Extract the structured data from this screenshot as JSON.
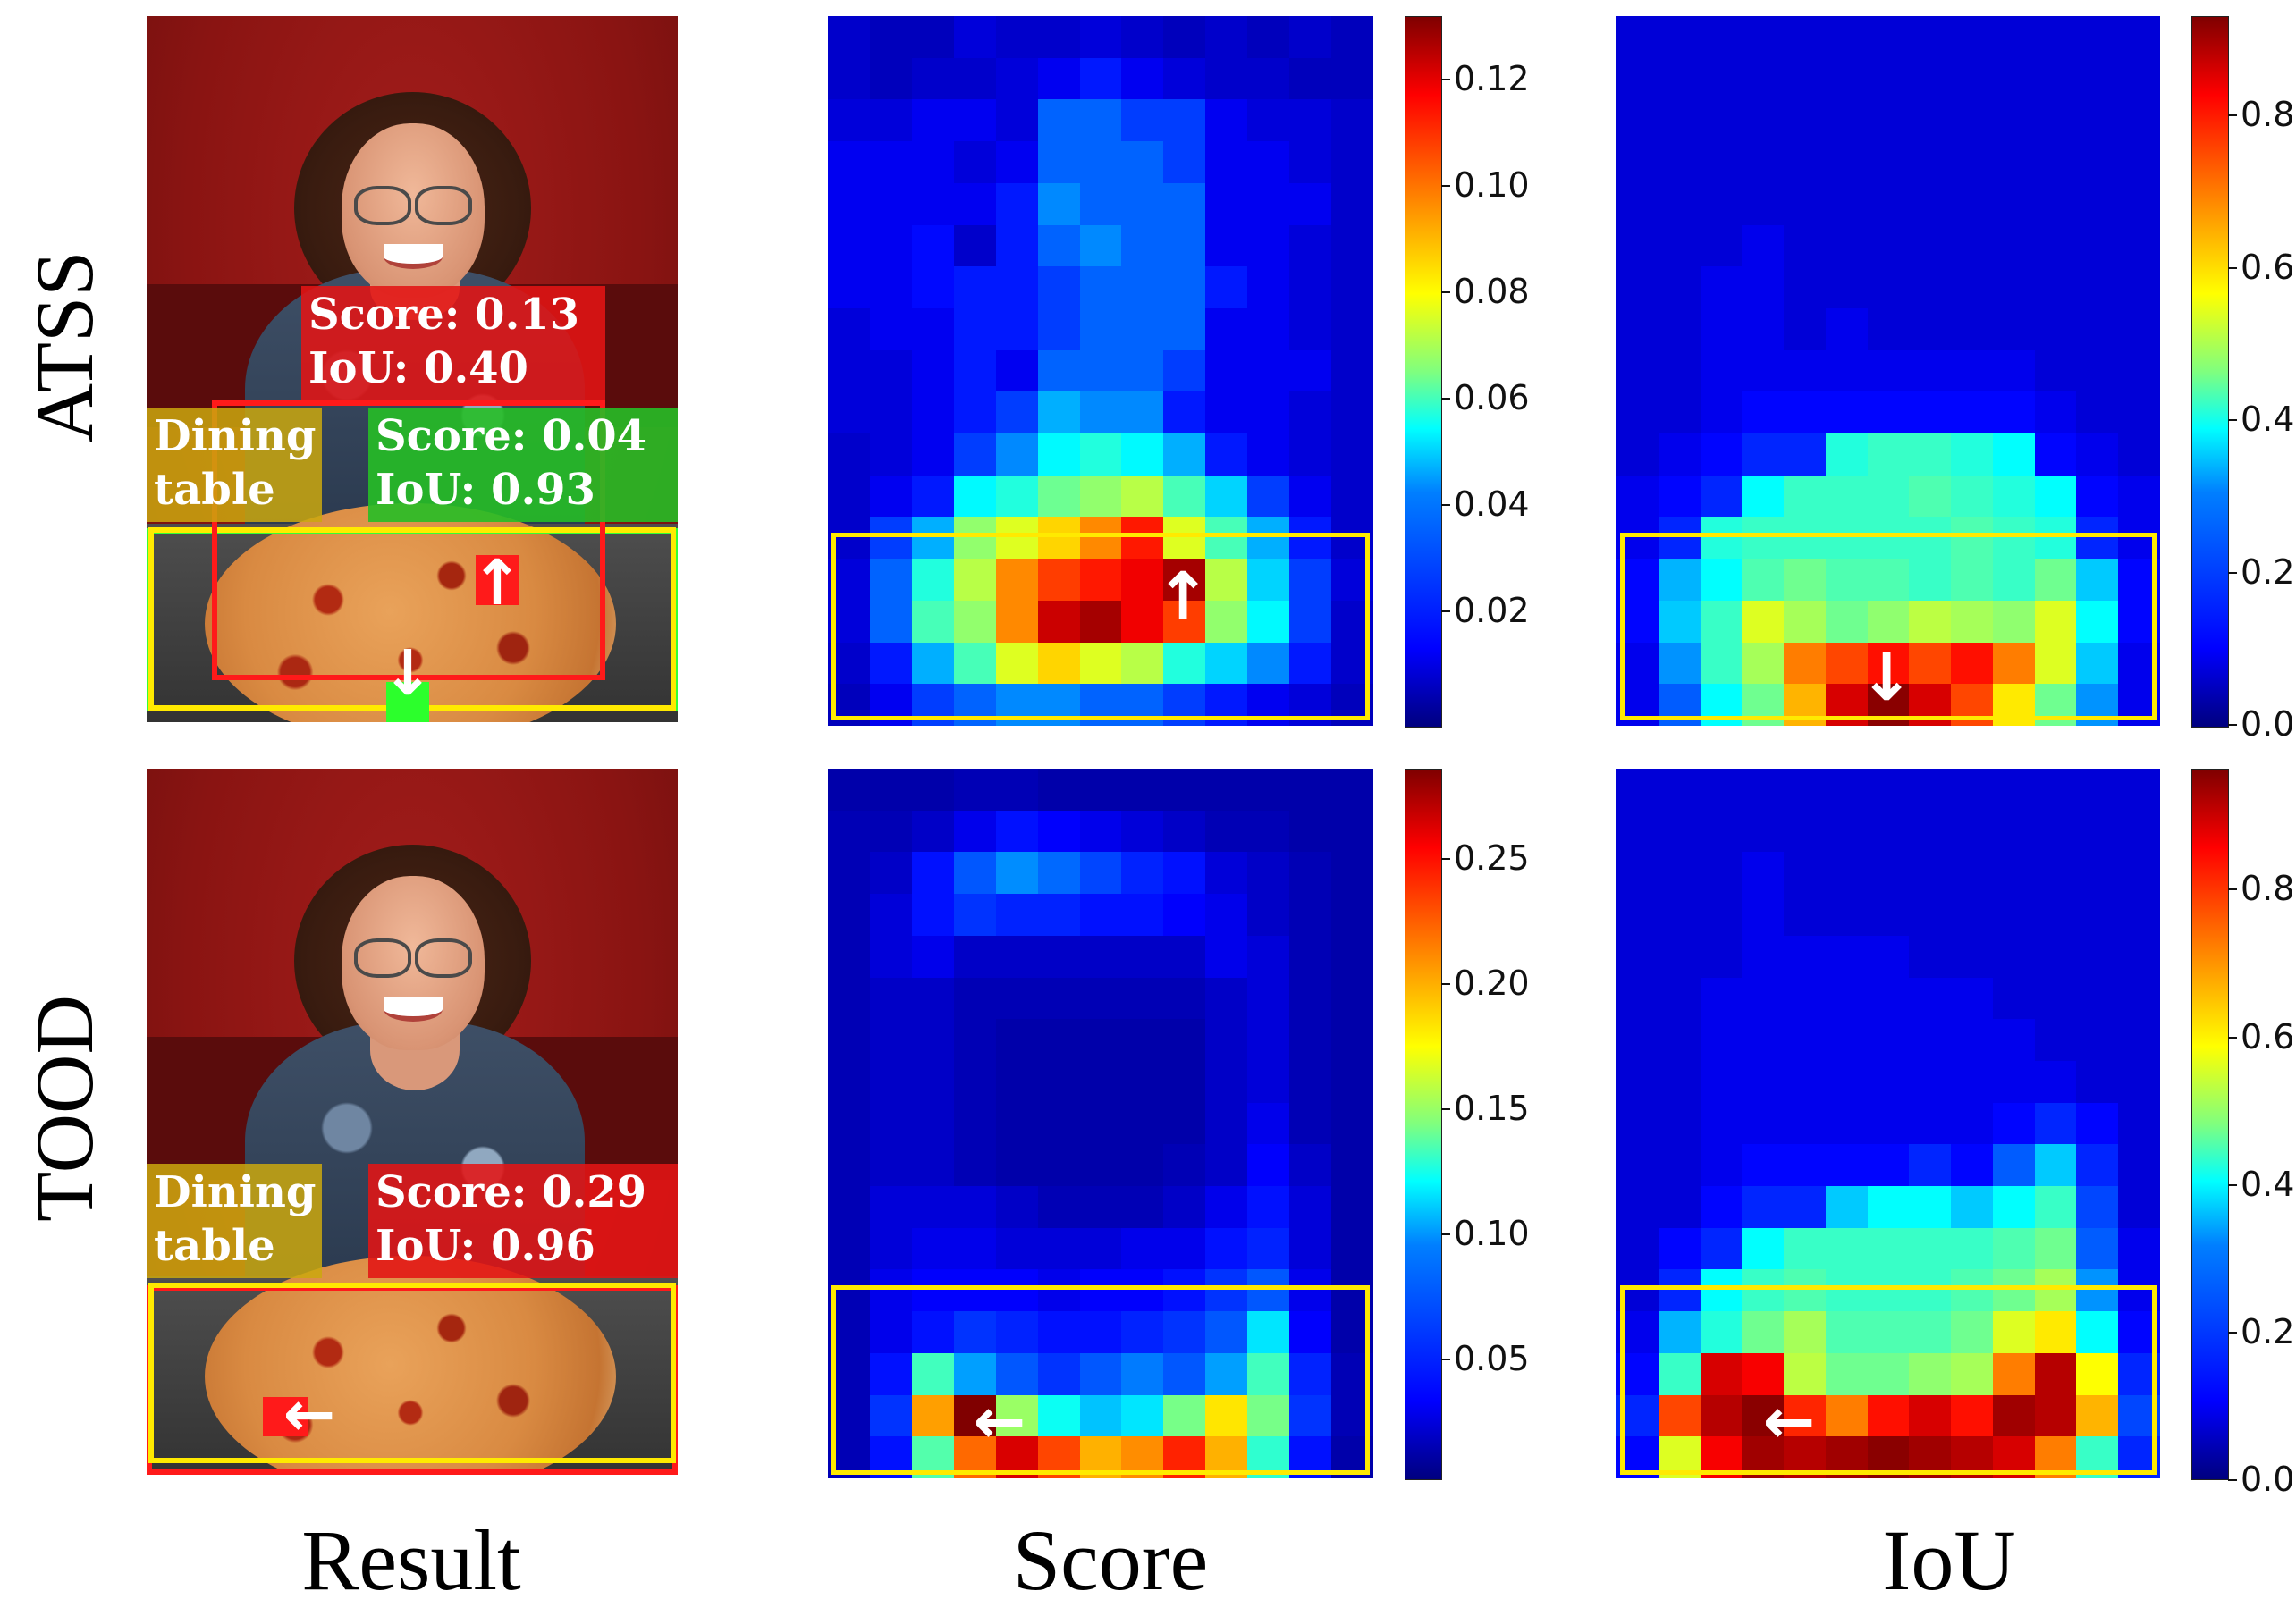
{
  "rows": [
    "ATSS",
    "TOOD"
  ],
  "columns": [
    "Result",
    "Score",
    "IoU"
  ],
  "atss": {
    "result": {
      "class_label": "Dining\ntable",
      "red_box": {
        "score": "Score: 0.13",
        "iou": "IoU: 0.40"
      },
      "green_box": {
        "score": "Score: 0.04",
        "iou": "IoU: 0.93"
      }
    },
    "score_colorbar": [
      "0.12",
      "0.10",
      "0.08",
      "0.06",
      "0.04",
      "0.02"
    ],
    "iou_colorbar": [
      "0.8",
      "0.6",
      "0.4",
      "0.2",
      "0.0"
    ]
  },
  "tood": {
    "result": {
      "class_label": "Dining\ntable",
      "red_box": {
        "score": "Score: 0.29",
        "iou": "IoU: 0.96"
      }
    },
    "score_colorbar": [
      "0.25",
      "0.20",
      "0.15",
      "0.10",
      "0.05"
    ],
    "iou_colorbar": [
      "0.8",
      "0.6",
      "0.4",
      "0.2",
      "0.0"
    ]
  },
  "chart_data": [
    {
      "type": "heatmap",
      "panel": "ATSS Score",
      "colormap": "jet",
      "range": [
        0,
        0.135
      ],
      "values": [
        [
          0.01,
          0.008,
          0.008,
          0.012,
          0.01,
          0.01,
          0.012,
          0.01,
          0.008,
          0.01,
          0.008,
          0.01,
          0.008
        ],
        [
          0.01,
          0.008,
          0.01,
          0.01,
          0.012,
          0.015,
          0.02,
          0.015,
          0.012,
          0.01,
          0.01,
          0.008,
          0.008
        ],
        [
          0.012,
          0.012,
          0.015,
          0.015,
          0.012,
          0.03,
          0.03,
          0.025,
          0.025,
          0.015,
          0.012,
          0.012,
          0.01
        ],
        [
          0.015,
          0.015,
          0.015,
          0.012,
          0.015,
          0.03,
          0.03,
          0.03,
          0.025,
          0.015,
          0.015,
          0.012,
          0.01
        ],
        [
          0.015,
          0.015,
          0.015,
          0.015,
          0.02,
          0.035,
          0.03,
          0.03,
          0.03,
          0.015,
          0.015,
          0.015,
          0.01
        ],
        [
          0.015,
          0.015,
          0.018,
          0.01,
          0.02,
          0.03,
          0.035,
          0.03,
          0.03,
          0.015,
          0.015,
          0.012,
          0.01
        ],
        [
          0.015,
          0.015,
          0.018,
          0.02,
          0.02,
          0.025,
          0.03,
          0.03,
          0.03,
          0.02,
          0.015,
          0.012,
          0.01
        ],
        [
          0.012,
          0.015,
          0.015,
          0.02,
          0.02,
          0.025,
          0.03,
          0.03,
          0.03,
          0.015,
          0.015,
          0.012,
          0.01
        ],
        [
          0.012,
          0.012,
          0.015,
          0.02,
          0.015,
          0.03,
          0.03,
          0.03,
          0.025,
          0.015,
          0.015,
          0.015,
          0.01
        ],
        [
          0.012,
          0.012,
          0.015,
          0.02,
          0.025,
          0.04,
          0.035,
          0.035,
          0.02,
          0.015,
          0.015,
          0.012,
          0.01
        ],
        [
          0.01,
          0.012,
          0.015,
          0.025,
          0.035,
          0.05,
          0.055,
          0.05,
          0.04,
          0.02,
          0.015,
          0.012,
          0.01
        ],
        [
          0.01,
          0.015,
          0.02,
          0.05,
          0.055,
          0.065,
          0.07,
          0.075,
          0.06,
          0.045,
          0.025,
          0.015,
          0.01
        ],
        [
          0.01,
          0.025,
          0.04,
          0.07,
          0.08,
          0.09,
          0.1,
          0.115,
          0.08,
          0.06,
          0.04,
          0.02,
          0.01
        ],
        [
          0.012,
          0.03,
          0.055,
          0.075,
          0.1,
          0.11,
          0.115,
          0.12,
          0.13,
          0.075,
          0.045,
          0.025,
          0.012
        ],
        [
          0.012,
          0.03,
          0.06,
          0.07,
          0.1,
          0.125,
          0.13,
          0.12,
          0.11,
          0.07,
          0.05,
          0.025,
          0.01
        ],
        [
          0.01,
          0.02,
          0.04,
          0.06,
          0.08,
          0.09,
          0.08,
          0.075,
          0.055,
          0.045,
          0.035,
          0.02,
          0.01
        ],
        [
          0.008,
          0.015,
          0.025,
          0.03,
          0.035,
          0.035,
          0.03,
          0.03,
          0.025,
          0.02,
          0.015,
          0.012,
          0.008
        ]
      ]
    },
    {
      "type": "heatmap",
      "panel": "ATSS IoU",
      "colormap": "jet",
      "range": [
        0,
        0.93
      ],
      "values": [
        [
          0.08,
          0.08,
          0.08,
          0.08,
          0.08,
          0.08,
          0.08,
          0.08,
          0.08,
          0.08,
          0.08,
          0.08,
          0.08
        ],
        [
          0.08,
          0.08,
          0.08,
          0.08,
          0.08,
          0.08,
          0.08,
          0.08,
          0.08,
          0.08,
          0.08,
          0.08,
          0.08
        ],
        [
          0.08,
          0.08,
          0.08,
          0.08,
          0.08,
          0.08,
          0.08,
          0.08,
          0.08,
          0.08,
          0.08,
          0.08,
          0.08
        ],
        [
          0.08,
          0.08,
          0.08,
          0.08,
          0.08,
          0.08,
          0.08,
          0.08,
          0.08,
          0.08,
          0.08,
          0.08,
          0.08
        ],
        [
          0.08,
          0.08,
          0.08,
          0.08,
          0.08,
          0.08,
          0.08,
          0.08,
          0.08,
          0.08,
          0.08,
          0.08,
          0.08
        ],
        [
          0.08,
          0.08,
          0.08,
          0.1,
          0.08,
          0.08,
          0.08,
          0.08,
          0.08,
          0.08,
          0.08,
          0.08,
          0.08
        ],
        [
          0.08,
          0.08,
          0.1,
          0.1,
          0.08,
          0.08,
          0.08,
          0.08,
          0.08,
          0.08,
          0.08,
          0.08,
          0.08
        ],
        [
          0.08,
          0.08,
          0.1,
          0.1,
          0.08,
          0.1,
          0.08,
          0.08,
          0.08,
          0.08,
          0.08,
          0.08,
          0.08
        ],
        [
          0.08,
          0.08,
          0.1,
          0.1,
          0.1,
          0.1,
          0.1,
          0.1,
          0.1,
          0.1,
          0.08,
          0.08,
          0.08
        ],
        [
          0.08,
          0.08,
          0.1,
          0.12,
          0.12,
          0.12,
          0.12,
          0.12,
          0.12,
          0.12,
          0.1,
          0.08,
          0.08
        ],
        [
          0.08,
          0.1,
          0.12,
          0.15,
          0.15,
          0.38,
          0.4,
          0.4,
          0.38,
          0.35,
          0.12,
          0.1,
          0.08
        ],
        [
          0.1,
          0.12,
          0.15,
          0.35,
          0.4,
          0.4,
          0.4,
          0.42,
          0.4,
          0.38,
          0.35,
          0.12,
          0.1
        ],
        [
          0.1,
          0.15,
          0.38,
          0.4,
          0.4,
          0.4,
          0.4,
          0.4,
          0.42,
          0.4,
          0.38,
          0.15,
          0.1
        ],
        [
          0.12,
          0.28,
          0.35,
          0.42,
          0.45,
          0.42,
          0.42,
          0.4,
          0.42,
          0.4,
          0.45,
          0.3,
          0.12
        ],
        [
          0.12,
          0.3,
          0.4,
          0.55,
          0.5,
          0.45,
          0.48,
          0.52,
          0.5,
          0.48,
          0.55,
          0.35,
          0.12
        ],
        [
          0.1,
          0.25,
          0.4,
          0.5,
          0.7,
          0.75,
          0.8,
          0.75,
          0.8,
          0.7,
          0.55,
          0.3,
          0.1
        ],
        [
          0.1,
          0.2,
          0.35,
          0.45,
          0.65,
          0.85,
          0.92,
          0.85,
          0.75,
          0.6,
          0.45,
          0.25,
          0.1
        ]
      ]
    },
    {
      "type": "heatmap",
      "panel": "TOOD Score",
      "colormap": "jet",
      "range": [
        0,
        0.285
      ],
      "values": [
        [
          0.012,
          0.012,
          0.012,
          0.015,
          0.015,
          0.012,
          0.012,
          0.012,
          0.012,
          0.012,
          0.012,
          0.012,
          0.012
        ],
        [
          0.015,
          0.015,
          0.02,
          0.03,
          0.04,
          0.035,
          0.03,
          0.025,
          0.02,
          0.015,
          0.015,
          0.012,
          0.012
        ],
        [
          0.015,
          0.02,
          0.04,
          0.06,
          0.075,
          0.065,
          0.055,
          0.045,
          0.04,
          0.025,
          0.02,
          0.015,
          0.012
        ],
        [
          0.015,
          0.025,
          0.04,
          0.05,
          0.045,
          0.045,
          0.04,
          0.04,
          0.035,
          0.03,
          0.02,
          0.015,
          0.012
        ],
        [
          0.015,
          0.025,
          0.03,
          0.02,
          0.02,
          0.02,
          0.02,
          0.02,
          0.02,
          0.03,
          0.025,
          0.015,
          0.012
        ],
        [
          0.015,
          0.02,
          0.02,
          0.015,
          0.015,
          0.015,
          0.015,
          0.015,
          0.015,
          0.02,
          0.025,
          0.015,
          0.012
        ],
        [
          0.015,
          0.02,
          0.02,
          0.015,
          0.012,
          0.012,
          0.012,
          0.012,
          0.012,
          0.02,
          0.025,
          0.015,
          0.012
        ],
        [
          0.015,
          0.02,
          0.02,
          0.015,
          0.012,
          0.012,
          0.012,
          0.012,
          0.012,
          0.02,
          0.025,
          0.015,
          0.012
        ],
        [
          0.015,
          0.02,
          0.02,
          0.015,
          0.012,
          0.012,
          0.012,
          0.012,
          0.012,
          0.02,
          0.03,
          0.015,
          0.012
        ],
        [
          0.015,
          0.02,
          0.02,
          0.015,
          0.012,
          0.012,
          0.012,
          0.012,
          0.015,
          0.02,
          0.035,
          0.02,
          0.012
        ],
        [
          0.015,
          0.025,
          0.025,
          0.025,
          0.02,
          0.015,
          0.015,
          0.015,
          0.02,
          0.03,
          0.04,
          0.025,
          0.012
        ],
        [
          0.015,
          0.025,
          0.03,
          0.03,
          0.025,
          0.025,
          0.025,
          0.03,
          0.03,
          0.04,
          0.045,
          0.025,
          0.012
        ],
        [
          0.015,
          0.03,
          0.035,
          0.035,
          0.035,
          0.03,
          0.035,
          0.035,
          0.04,
          0.05,
          0.06,
          0.03,
          0.012
        ],
        [
          0.015,
          0.03,
          0.04,
          0.05,
          0.045,
          0.04,
          0.04,
          0.045,
          0.05,
          0.06,
          0.1,
          0.035,
          0.012
        ],
        [
          0.015,
          0.04,
          0.125,
          0.08,
          0.06,
          0.05,
          0.06,
          0.07,
          0.06,
          0.08,
          0.125,
          0.045,
          0.015
        ],
        [
          0.015,
          0.05,
          0.205,
          0.285,
          0.15,
          0.11,
          0.09,
          0.1,
          0.14,
          0.185,
          0.14,
          0.05,
          0.015
        ],
        [
          0.015,
          0.04,
          0.13,
          0.22,
          0.26,
          0.23,
          0.2,
          0.21,
          0.24,
          0.2,
          0.12,
          0.04,
          0.012
        ]
      ]
    },
    {
      "type": "heatmap",
      "panel": "TOOD IoU",
      "colormap": "jet",
      "range": [
        0,
        0.93
      ],
      "values": [
        [
          0.08,
          0.08,
          0.08,
          0.08,
          0.08,
          0.08,
          0.08,
          0.08,
          0.08,
          0.08,
          0.08,
          0.08,
          0.08
        ],
        [
          0.08,
          0.08,
          0.08,
          0.08,
          0.08,
          0.08,
          0.08,
          0.08,
          0.08,
          0.08,
          0.08,
          0.08,
          0.08
        ],
        [
          0.08,
          0.08,
          0.08,
          0.1,
          0.08,
          0.08,
          0.08,
          0.08,
          0.08,
          0.08,
          0.08,
          0.08,
          0.08
        ],
        [
          0.08,
          0.08,
          0.08,
          0.1,
          0.08,
          0.08,
          0.08,
          0.08,
          0.08,
          0.08,
          0.08,
          0.08,
          0.08
        ],
        [
          0.08,
          0.08,
          0.08,
          0.1,
          0.1,
          0.1,
          0.1,
          0.08,
          0.08,
          0.08,
          0.08,
          0.08,
          0.08
        ],
        [
          0.08,
          0.08,
          0.1,
          0.1,
          0.1,
          0.1,
          0.1,
          0.1,
          0.1,
          0.08,
          0.08,
          0.08,
          0.08
        ],
        [
          0.08,
          0.08,
          0.1,
          0.1,
          0.1,
          0.1,
          0.1,
          0.1,
          0.1,
          0.1,
          0.08,
          0.08,
          0.08
        ],
        [
          0.08,
          0.08,
          0.1,
          0.1,
          0.1,
          0.1,
          0.1,
          0.1,
          0.1,
          0.1,
          0.1,
          0.08,
          0.08
        ],
        [
          0.08,
          0.08,
          0.1,
          0.1,
          0.1,
          0.1,
          0.1,
          0.1,
          0.1,
          0.12,
          0.15,
          0.12,
          0.08
        ],
        [
          0.08,
          0.08,
          0.1,
          0.12,
          0.12,
          0.12,
          0.12,
          0.15,
          0.12,
          0.2,
          0.3,
          0.15,
          0.08
        ],
        [
          0.08,
          0.08,
          0.12,
          0.15,
          0.15,
          0.3,
          0.35,
          0.35,
          0.3,
          0.35,
          0.4,
          0.18,
          0.08
        ],
        [
          0.08,
          0.12,
          0.15,
          0.35,
          0.4,
          0.4,
          0.4,
          0.4,
          0.4,
          0.42,
          0.45,
          0.2,
          0.1
        ],
        [
          0.08,
          0.15,
          0.35,
          0.4,
          0.42,
          0.4,
          0.4,
          0.4,
          0.42,
          0.45,
          0.5,
          0.25,
          0.1
        ],
        [
          0.1,
          0.28,
          0.38,
          0.45,
          0.5,
          0.42,
          0.42,
          0.42,
          0.45,
          0.55,
          0.6,
          0.35,
          0.12
        ],
        [
          0.12,
          0.4,
          0.85,
          0.82,
          0.52,
          0.45,
          0.45,
          0.48,
          0.5,
          0.7,
          0.88,
          0.58,
          0.15
        ],
        [
          0.15,
          0.75,
          0.88,
          0.92,
          0.78,
          0.7,
          0.8,
          0.85,
          0.8,
          0.9,
          0.88,
          0.65,
          0.18
        ],
        [
          0.12,
          0.55,
          0.82,
          0.9,
          0.88,
          0.9,
          0.92,
          0.9,
          0.88,
          0.85,
          0.7,
          0.4,
          0.15
        ]
      ]
    }
  ]
}
